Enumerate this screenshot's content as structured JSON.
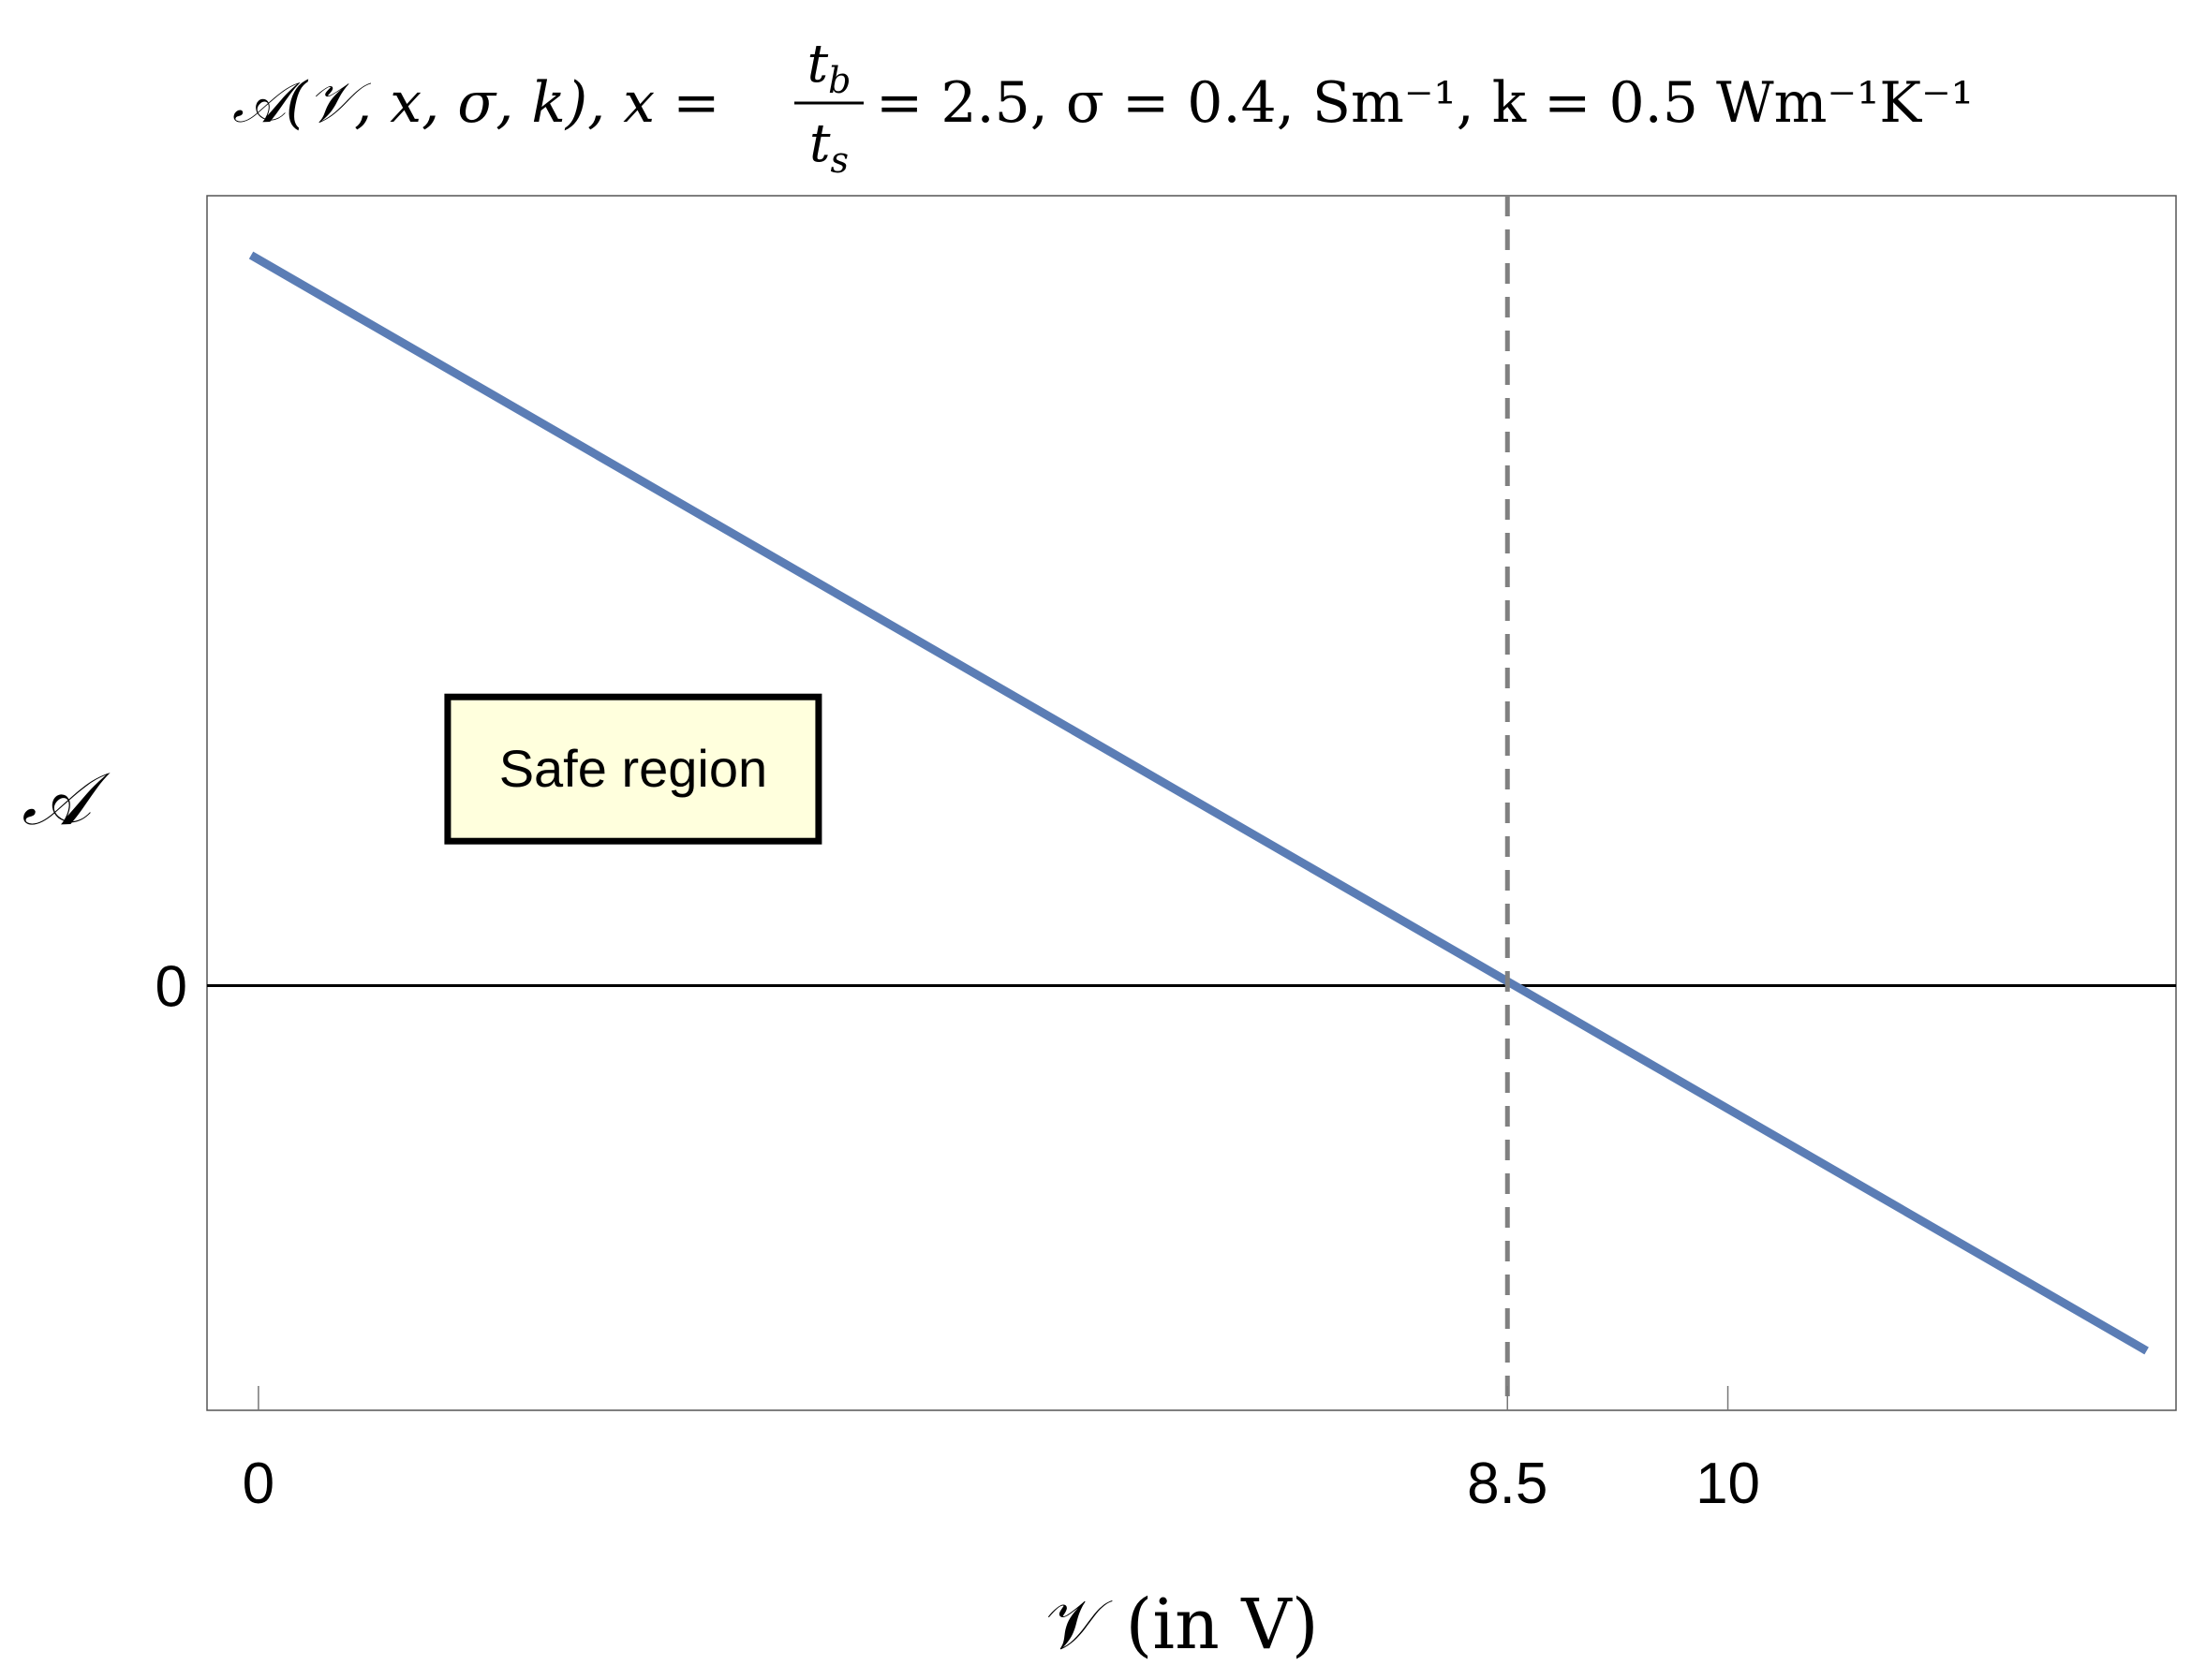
{
  "chart_data": {
    "type": "line",
    "title": "𝒜(𝒱, x, σ, k),  x = t_b / t_s = 2.5,  σ = 0.4, Sm⁻¹,  k = 0.5 Wm⁻¹K⁻¹",
    "title_parts": {
      "lhs": "𝒜(𝒱, x, σ, k),  x =",
      "frac_num": "t",
      "frac_num_sub": "b",
      "frac_den": "t",
      "frac_den_sub": "s",
      "rhs": "= 2.5,  σ = 0.4, Sm⁻¹,  k = 0.5 Wm⁻¹K⁻¹"
    },
    "xlabel": "𝒱  (in V)",
    "ylabel": "𝒜",
    "xlim": [
      -0.35,
      13.05
    ],
    "ylim": [
      -1.0,
      1.86
    ],
    "x_ticks": [
      {
        "value": 0,
        "label": "0"
      },
      {
        "value": 8.5,
        "label": "8.5"
      },
      {
        "value": 10,
        "label": "10"
      }
    ],
    "y_ticks": [
      {
        "value": 0,
        "label": "0"
      }
    ],
    "series": [
      {
        "x": [
          -0.05,
          12.85
        ],
        "y": [
          1.72,
          -0.86
        ],
        "color": "#5b7db5"
      }
    ],
    "reference_lines": [
      {
        "orientation": "vertical",
        "value": 8.5,
        "style": "dashed",
        "color": "#808080"
      },
      {
        "orientation": "horizontal",
        "value": 0,
        "style": "solid",
        "color": "#000000"
      }
    ],
    "annotations": [
      {
        "text": "Safe region",
        "x": 2.55,
        "y": 0.51,
        "background": "#ffffdd",
        "border": "#000000"
      }
    ],
    "grid": false,
    "frame": true
  }
}
